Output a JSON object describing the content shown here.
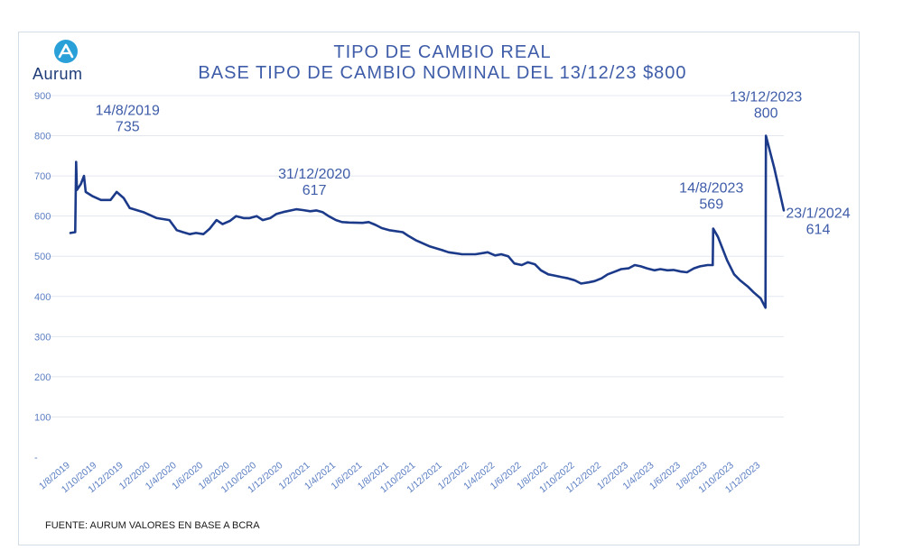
{
  "brand": {
    "name": "Aurum",
    "icon": "aurum-logo-icon",
    "color": "#2aa0d8"
  },
  "header": {
    "title_line1": "TIPO DE CAMBIO REAL",
    "title_line2": "BASE TIPO DE CAMBIO NOMINAL DEL 13/12/23 $800"
  },
  "source": "FUENTE: AURUM VALORES EN BASE A BCRA",
  "colors": {
    "line": "#1c3a8a",
    "label": "#3e5ca8",
    "grid": "#e3e8f0",
    "axis": "#5b7ec2"
  },
  "chart_data": {
    "type": "line",
    "title": "TIPO DE CAMBIO REAL",
    "subtitle": "BASE TIPO DE CAMBIO NOMINAL DEL 13/12/23 $800",
    "xlabel": "",
    "ylabel": "",
    "ylim": [
      0,
      900
    ],
    "yticks": [
      0,
      100,
      200,
      300,
      400,
      500,
      600,
      700,
      800,
      900
    ],
    "ytick_labels": [
      "-",
      "100",
      "200",
      "300",
      "400",
      "500",
      "600",
      "700",
      "800",
      "900"
    ],
    "grid": true,
    "xticks": [
      "1/8/2019",
      "1/10/2019",
      "1/12/2019",
      "1/2/2020",
      "1/4/2020",
      "1/6/2020",
      "1/8/2020",
      "1/10/2020",
      "1/12/2020",
      "1/2/2021",
      "1/4/2021",
      "1/6/2021",
      "1/8/2021",
      "1/10/2021",
      "1/12/2021",
      "1/2/2022",
      "1/4/2022",
      "1/6/2022",
      "1/8/2022",
      "1/10/2022",
      "1/12/2022",
      "1/2/2023",
      "1/4/2023",
      "1/6/2023",
      "1/8/2023",
      "1/10/2023",
      "1/12/2023"
    ],
    "series": [
      {
        "points": [
          [
            "2019-08-01",
            558
          ],
          [
            "2019-08-12",
            560
          ],
          [
            "2019-08-14",
            735
          ],
          [
            "2019-08-16",
            665
          ],
          [
            "2019-08-25",
            680
          ],
          [
            "2019-09-01",
            700
          ],
          [
            "2019-09-05",
            660
          ],
          [
            "2019-09-20",
            650
          ],
          [
            "2019-10-10",
            640
          ],
          [
            "2019-11-01",
            640
          ],
          [
            "2019-11-15",
            660
          ],
          [
            "2019-12-01",
            645
          ],
          [
            "2019-12-15",
            620
          ],
          [
            "2020-01-15",
            610
          ],
          [
            "2020-02-15",
            595
          ],
          [
            "2020-03-15",
            590
          ],
          [
            "2020-04-01",
            565
          ],
          [
            "2020-04-15",
            560
          ],
          [
            "2020-05-01",
            555
          ],
          [
            "2020-05-15",
            558
          ],
          [
            "2020-06-01",
            555
          ],
          [
            "2020-06-15",
            568
          ],
          [
            "2020-07-01",
            590
          ],
          [
            "2020-07-15",
            580
          ],
          [
            "2020-08-01",
            588
          ],
          [
            "2020-08-15",
            600
          ],
          [
            "2020-09-01",
            595
          ],
          [
            "2020-09-15",
            595
          ],
          [
            "2020-10-01",
            600
          ],
          [
            "2020-10-15",
            590
          ],
          [
            "2020-11-01",
            595
          ],
          [
            "2020-11-15",
            605
          ],
          [
            "2020-12-01",
            610
          ],
          [
            "2020-12-31",
            617
          ],
          [
            "2021-01-15",
            615
          ],
          [
            "2021-02-01",
            612
          ],
          [
            "2021-02-15",
            614
          ],
          [
            "2021-03-01",
            610
          ],
          [
            "2021-03-15",
            600
          ],
          [
            "2021-04-01",
            590
          ],
          [
            "2021-04-15",
            585
          ],
          [
            "2021-05-01",
            584
          ],
          [
            "2021-06-01",
            583
          ],
          [
            "2021-06-15",
            585
          ],
          [
            "2021-07-01",
            578
          ],
          [
            "2021-07-15",
            570
          ],
          [
            "2021-08-01",
            565
          ],
          [
            "2021-09-01",
            560
          ],
          [
            "2021-09-15",
            550
          ],
          [
            "2021-10-01",
            540
          ],
          [
            "2021-11-01",
            525
          ],
          [
            "2021-12-01",
            515
          ],
          [
            "2021-12-15",
            510
          ],
          [
            "2022-01-15",
            505
          ],
          [
            "2022-02-15",
            505
          ],
          [
            "2022-03-15",
            510
          ],
          [
            "2022-04-01",
            502
          ],
          [
            "2022-04-15",
            505
          ],
          [
            "2022-05-01",
            500
          ],
          [
            "2022-05-15",
            482
          ],
          [
            "2022-06-01",
            478
          ],
          [
            "2022-06-15",
            485
          ],
          [
            "2022-07-01",
            480
          ],
          [
            "2022-07-15",
            465
          ],
          [
            "2022-08-01",
            455
          ],
          [
            "2022-08-15",
            452
          ],
          [
            "2022-09-01",
            448
          ],
          [
            "2022-09-15",
            445
          ],
          [
            "2022-10-01",
            440
          ],
          [
            "2022-10-15",
            432
          ],
          [
            "2022-11-01",
            435
          ],
          [
            "2022-11-15",
            438
          ],
          [
            "2022-12-01",
            445
          ],
          [
            "2022-12-15",
            455
          ],
          [
            "2023-01-01",
            462
          ],
          [
            "2023-01-15",
            468
          ],
          [
            "2023-02-01",
            470
          ],
          [
            "2023-02-15",
            478
          ],
          [
            "2023-03-01",
            475
          ],
          [
            "2023-03-15",
            470
          ],
          [
            "2023-04-01",
            465
          ],
          [
            "2023-04-15",
            468
          ],
          [
            "2023-05-01",
            465
          ],
          [
            "2023-05-15",
            466
          ],
          [
            "2023-06-01",
            462
          ],
          [
            "2023-06-15",
            460
          ],
          [
            "2023-07-01",
            470
          ],
          [
            "2023-07-15",
            475
          ],
          [
            "2023-08-01",
            478
          ],
          [
            "2023-08-13",
            478
          ],
          [
            "2023-08-14",
            569
          ],
          [
            "2023-08-25",
            548
          ],
          [
            "2023-09-15",
            490
          ],
          [
            "2023-10-01",
            455
          ],
          [
            "2023-10-15",
            440
          ],
          [
            "2023-11-01",
            425
          ],
          [
            "2023-11-15",
            410
          ],
          [
            "2023-12-01",
            395
          ],
          [
            "2023-12-12",
            372
          ],
          [
            "2023-12-13",
            800
          ],
          [
            "2024-01-01",
            720
          ],
          [
            "2024-01-23",
            614
          ]
        ]
      }
    ],
    "annotations": [
      {
        "date": "14/8/2019",
        "value": "735",
        "x": "2019-08-14",
        "y": 735
      },
      {
        "date": "31/12/2020",
        "value": "617",
        "x": "2020-12-31",
        "y": 617
      },
      {
        "date": "14/8/2023",
        "value": "569",
        "x": "2023-08-14",
        "y": 569
      },
      {
        "date": "13/12/2023",
        "value": "800",
        "x": "2023-12-13",
        "y": 800
      },
      {
        "date": "23/1/2024",
        "value": "614",
        "x": "2024-01-23",
        "y": 614
      }
    ]
  }
}
